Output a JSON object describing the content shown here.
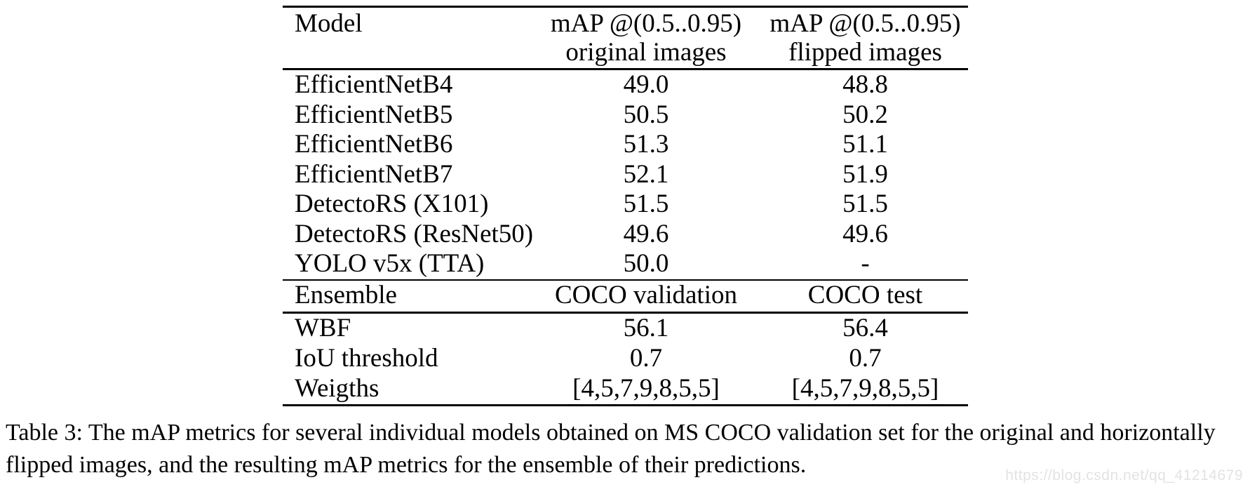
{
  "table": {
    "columns": {
      "model_header": "Model",
      "col2": {
        "line1": "mAP @(0.5..0.95)",
        "line2": "original images"
      },
      "col3": {
        "line1": "mAP @(0.5..0.95)",
        "line2": "flipped images"
      }
    },
    "rows": [
      {
        "model": "EfficientNetB4",
        "original": "49.0",
        "flipped": "48.8"
      },
      {
        "model": "EfficientNetB5",
        "original": "50.5",
        "flipped": "50.2"
      },
      {
        "model": "EfficientNetB6",
        "original": "51.3",
        "flipped": "51.1"
      },
      {
        "model": "EfficientNetB7",
        "original": "52.1",
        "flipped": "51.9"
      },
      {
        "model": "DetectoRS (X101)",
        "original": "51.5",
        "flipped": "51.5"
      },
      {
        "model": "DetectoRS (ResNet50)",
        "original": "49.6",
        "flipped": "49.6"
      },
      {
        "model": "YOLO v5x (TTA)",
        "original": "50.0",
        "flipped": "-"
      }
    ],
    "ensemble": {
      "header": {
        "label": "Ensemble",
        "col2": "COCO validation",
        "col3": "COCO test"
      },
      "rows": [
        {
          "label": "WBF",
          "validation": "56.1",
          "test": "56.4"
        },
        {
          "label": "IoU threshold",
          "validation": "0.7",
          "test": "0.7"
        },
        {
          "label": "Weigths",
          "validation": "[4,5,7,9,8,5,5]",
          "test": "[4,5,7,9,8,5,5]"
        }
      ]
    }
  },
  "caption": "Table 3: The mAP metrics for several individual models obtained on MS COCO validation set for the original and horizontally flipped images, and the resulting mAP metrics for the ensemble of their predictions.",
  "watermark": {
    "text": "https://blog.csdn.net/qq_41214679",
    "color": "#e3e3e3"
  }
}
